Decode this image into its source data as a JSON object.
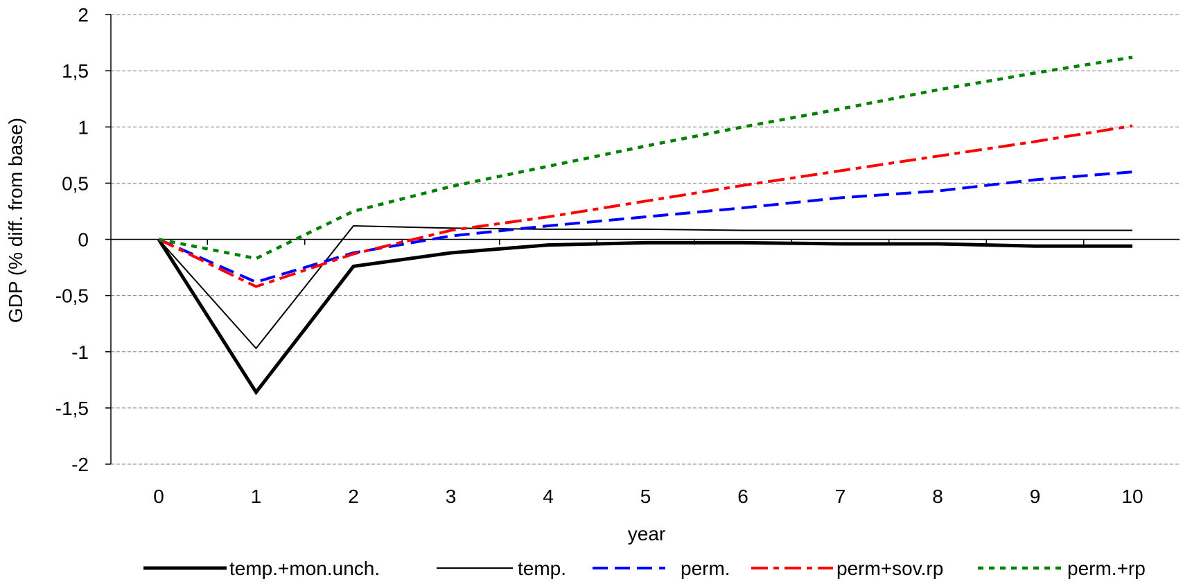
{
  "chart_data": {
    "type": "line",
    "xlabel": "year",
    "ylabel": "GDP (% diff. from base)",
    "x": [
      0,
      1,
      2,
      3,
      4,
      5,
      6,
      7,
      8,
      9,
      10
    ],
    "x_tick_labels": [
      "0",
      "1",
      "2",
      "3",
      "4",
      "5",
      "6",
      "7",
      "8",
      "9",
      "10"
    ],
    "ylim": [
      -2,
      2
    ],
    "y_ticks": [
      2,
      1.5,
      1,
      0.5,
      0,
      -0.5,
      -1,
      -1.5,
      -2
    ],
    "y_tick_labels": [
      "2",
      "1,5",
      "1",
      "0,5",
      "0",
      "-0,5",
      "-1",
      "-1,5",
      "-2"
    ],
    "grid": "horizontal dashed",
    "legend_position": "bottom",
    "series": [
      {
        "name": "temp.+mon.unch.",
        "color": "#000000",
        "style": "solid-thick",
        "values": [
          0,
          -1.36,
          -0.24,
          -0.12,
          -0.05,
          -0.03,
          -0.03,
          -0.04,
          -0.04,
          -0.06,
          -0.06
        ]
      },
      {
        "name": "temp.",
        "color": "#000000",
        "style": "solid-thin",
        "values": [
          0,
          -0.97,
          0.12,
          0.1,
          0.09,
          0.09,
          0.08,
          0.08,
          0.08,
          0.08,
          0.08
        ]
      },
      {
        "name": "perm.",
        "color": "#0000ff",
        "style": "dashed",
        "values": [
          0,
          -0.38,
          -0.12,
          0.03,
          0.12,
          0.2,
          0.28,
          0.37,
          0.43,
          0.53,
          0.6
        ]
      },
      {
        "name": "perm+sov.rp",
        "color": "#ff0000",
        "style": "dash-dot",
        "values": [
          0,
          -0.42,
          -0.13,
          0.08,
          0.2,
          0.34,
          0.48,
          0.61,
          0.74,
          0.87,
          1.01
        ]
      },
      {
        "name": "perm.+rp",
        "color": "#008000",
        "style": "dotted",
        "values": [
          0,
          -0.17,
          0.25,
          0.47,
          0.65,
          0.83,
          1.0,
          1.16,
          1.33,
          1.48,
          1.62
        ]
      }
    ]
  }
}
